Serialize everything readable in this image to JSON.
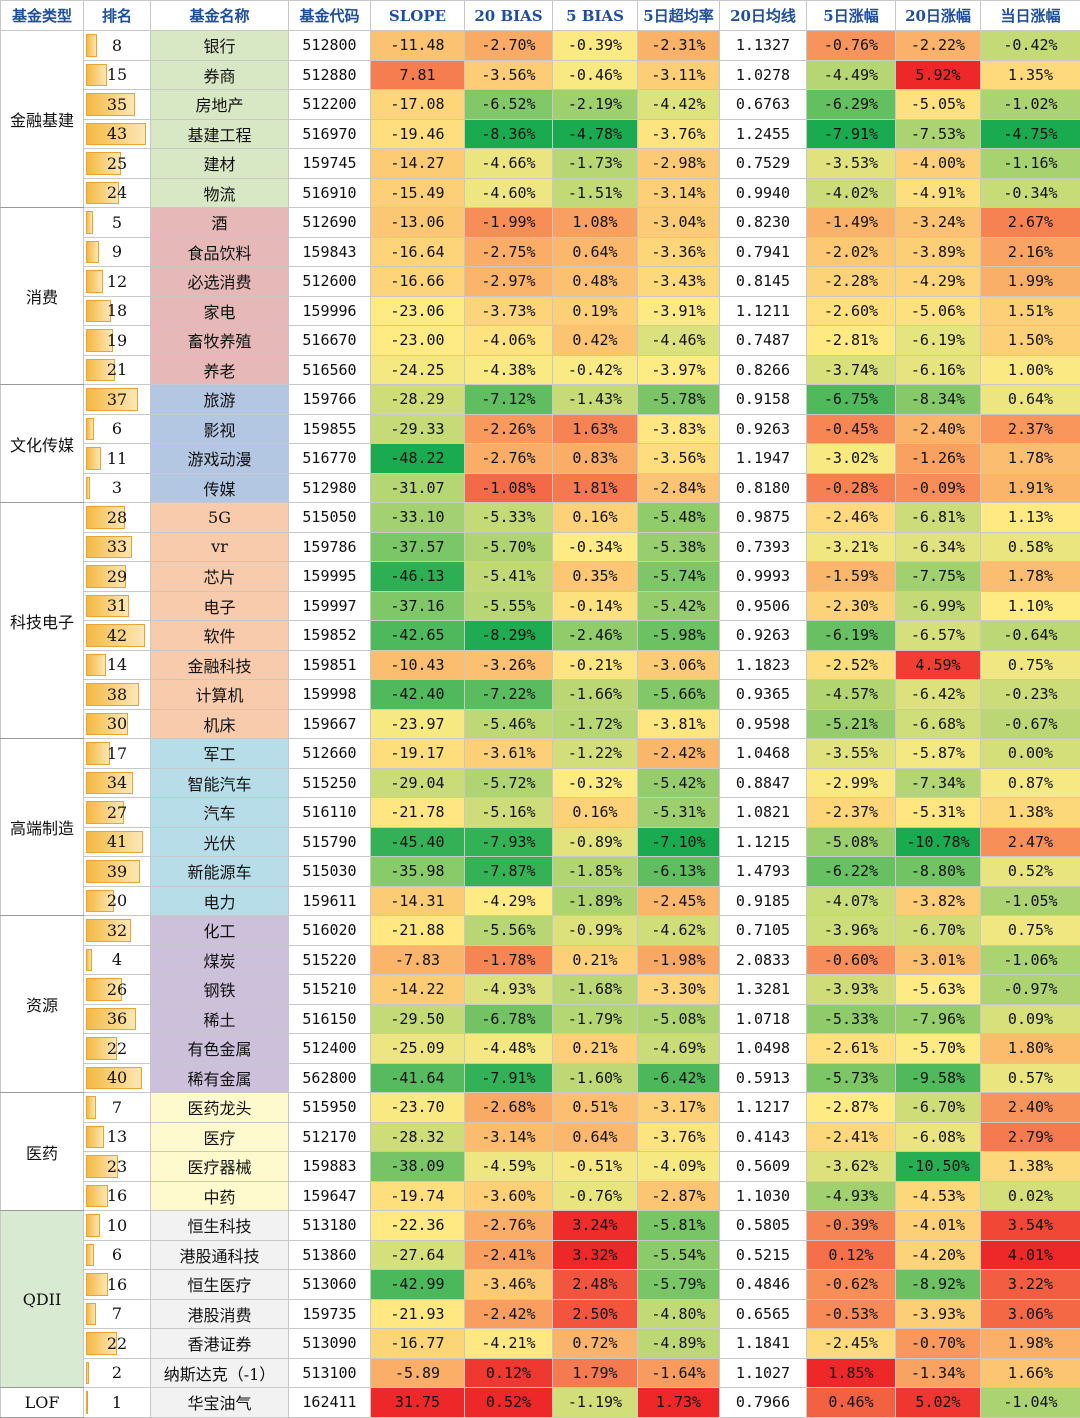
{
  "headers": [
    "基金类型",
    "排名",
    "基金名称",
    "基金代码",
    "SLOPE",
    "20 BIAS",
    "5 BIAS",
    "5日超均率",
    "20日均线",
    "5日涨幅",
    "20日涨幅",
    "当日涨幅"
  ],
  "colors": {
    "header_text": "#1f4e9a",
    "rank_bar": "#f4b942",
    "grid": "#c8c8c8"
  },
  "groups": [
    {
      "category": "金融基建",
      "name_color": "#d9e8c4",
      "rows": [
        [
          "8",
          "银行",
          "512800",
          "-11.48",
          "-2.70%",
          "-0.39%",
          "-2.31%",
          "1.1327",
          "-0.76%",
          "-2.22%",
          "-0.42%"
        ],
        [
          "15",
          "券商",
          "512880",
          "7.81",
          "-3.56%",
          "-0.46%",
          "-3.11%",
          "1.0278",
          "-4.49%",
          "5.92%",
          "1.35%"
        ],
        [
          "35",
          "房地产",
          "512200",
          "-17.08",
          "-6.52%",
          "-2.19%",
          "-4.42%",
          "0.6763",
          "-6.29%",
          "-5.05%",
          "-1.02%"
        ],
        [
          "43",
          "基建工程",
          "516970",
          "-19.46",
          "-8.36%",
          "-4.78%",
          "-3.76%",
          "1.2455",
          "-7.91%",
          "-7.53%",
          "-4.75%"
        ],
        [
          "25",
          "建材",
          "159745",
          "-14.27",
          "-4.66%",
          "-1.73%",
          "-2.98%",
          "0.7529",
          "-3.53%",
          "-4.00%",
          "-1.16%"
        ],
        [
          "24",
          "物流",
          "516910",
          "-15.49",
          "-4.60%",
          "-1.51%",
          "-3.14%",
          "0.9940",
          "-4.02%",
          "-4.91%",
          "-0.34%"
        ]
      ]
    },
    {
      "category": "消费",
      "name_color": "#e6b8b7",
      "rows": [
        [
          "5",
          "酒",
          "512690",
          "-13.06",
          "-1.99%",
          "1.08%",
          "-3.04%",
          "0.8230",
          "-1.49%",
          "-3.24%",
          "2.67%"
        ],
        [
          "9",
          "食品饮料",
          "159843",
          "-16.64",
          "-2.75%",
          "0.64%",
          "-3.36%",
          "0.7941",
          "-2.02%",
          "-3.89%",
          "2.16%"
        ],
        [
          "12",
          "必选消费",
          "512600",
          "-16.66",
          "-2.97%",
          "0.48%",
          "-3.43%",
          "0.8145",
          "-2.28%",
          "-4.29%",
          "1.99%"
        ],
        [
          "18",
          "家电",
          "159996",
          "-23.06",
          "-3.73%",
          "0.19%",
          "-3.91%",
          "1.1211",
          "-2.60%",
          "-5.06%",
          "1.51%"
        ],
        [
          "19",
          "畜牧养殖",
          "516670",
          "-23.00",
          "-4.06%",
          "0.42%",
          "-4.46%",
          "0.7487",
          "-2.81%",
          "-6.19%",
          "1.50%"
        ],
        [
          "21",
          "养老",
          "516560",
          "-24.25",
          "-4.38%",
          "-0.42%",
          "-3.97%",
          "0.8266",
          "-3.74%",
          "-6.16%",
          "1.00%"
        ]
      ]
    },
    {
      "category": "文化传媒",
      "name_color": "#b4c7e2",
      "rows": [
        [
          "37",
          "旅游",
          "159766",
          "-28.29",
          "-7.12%",
          "-1.43%",
          "-5.78%",
          "0.9158",
          "-6.75%",
          "-8.34%",
          "0.64%"
        ],
        [
          "6",
          "影视",
          "159855",
          "-29.33",
          "-2.26%",
          "1.63%",
          "-3.83%",
          "0.9263",
          "-0.45%",
          "-2.40%",
          "2.37%"
        ],
        [
          "11",
          "游戏动漫",
          "516770",
          "-48.22",
          "-2.76%",
          "0.83%",
          "-3.56%",
          "1.1947",
          "-3.02%",
          "-1.26%",
          "1.78%"
        ],
        [
          "3",
          "传媒",
          "512980",
          "-31.07",
          "-1.08%",
          "1.81%",
          "-2.84%",
          "0.8180",
          "-0.28%",
          "-0.09%",
          "1.91%"
        ]
      ]
    },
    {
      "category": "科技电子",
      "name_color": "#f8cbad",
      "rows": [
        [
          "28",
          "5G",
          "515050",
          "-33.10",
          "-5.33%",
          "0.16%",
          "-5.48%",
          "0.9875",
          "-2.46%",
          "-6.81%",
          "1.13%"
        ],
        [
          "33",
          "vr",
          "159786",
          "-37.57",
          "-5.70%",
          "-0.34%",
          "-5.38%",
          "0.7393",
          "-3.21%",
          "-6.34%",
          "0.58%"
        ],
        [
          "29",
          "芯片",
          "159995",
          "-46.13",
          "-5.41%",
          "0.35%",
          "-5.74%",
          "0.9993",
          "-1.59%",
          "-7.75%",
          "1.78%"
        ],
        [
          "31",
          "电子",
          "159997",
          "-37.16",
          "-5.55%",
          "-0.14%",
          "-5.42%",
          "0.9506",
          "-2.30%",
          "-6.99%",
          "1.10%"
        ],
        [
          "42",
          "软件",
          "159852",
          "-42.65",
          "-8.29%",
          "-2.46%",
          "-5.98%",
          "0.9263",
          "-6.19%",
          "-6.57%",
          "-0.64%"
        ],
        [
          "14",
          "金融科技",
          "159851",
          "-10.43",
          "-3.26%",
          "-0.21%",
          "-3.06%",
          "1.1823",
          "-2.52%",
          "4.59%",
          "0.75%"
        ],
        [
          "38",
          "计算机",
          "159998",
          "-42.40",
          "-7.22%",
          "-1.66%",
          "-5.66%",
          "0.9365",
          "-4.57%",
          "-6.42%",
          "-0.23%"
        ],
        [
          "30",
          "机床",
          "159667",
          "-23.97",
          "-5.46%",
          "-1.72%",
          "-3.81%",
          "0.9598",
          "-5.21%",
          "-6.68%",
          "-0.67%"
        ]
      ]
    },
    {
      "category": "高端制造",
      "name_color": "#b7dde8",
      "rows": [
        [
          "17",
          "军工",
          "512660",
          "-19.17",
          "-3.61%",
          "-1.22%",
          "-2.42%",
          "1.0468",
          "-3.55%",
          "-5.87%",
          "0.00%"
        ],
        [
          "34",
          "智能汽车",
          "515250",
          "-29.04",
          "-5.72%",
          "-0.32%",
          "-5.42%",
          "0.8847",
          "-2.99%",
          "-7.34%",
          "0.87%"
        ],
        [
          "27",
          "汽车",
          "516110",
          "-21.78",
          "-5.16%",
          "0.16%",
          "-5.31%",
          "1.0821",
          "-2.37%",
          "-5.31%",
          "1.38%"
        ],
        [
          "41",
          "光伏",
          "515790",
          "-45.40",
          "-7.93%",
          "-0.89%",
          "-7.10%",
          "1.1215",
          "-5.08%",
          "-10.78%",
          "2.47%"
        ],
        [
          "39",
          "新能源车",
          "515030",
          "-35.98",
          "-7.87%",
          "-1.85%",
          "-6.13%",
          "1.4793",
          "-6.22%",
          "-8.80%",
          "0.52%"
        ],
        [
          "20",
          "电力",
          "159611",
          "-14.31",
          "-4.29%",
          "-1.89%",
          "-2.45%",
          "0.9185",
          "-4.07%",
          "-3.82%",
          "-1.05%"
        ]
      ]
    },
    {
      "category": "资源",
      "name_color": "#ccc0da",
      "rows": [
        [
          "32",
          "化工",
          "516020",
          "-21.88",
          "-5.56%",
          "-0.99%",
          "-4.62%",
          "0.7105",
          "-3.96%",
          "-6.70%",
          "0.75%"
        ],
        [
          "4",
          "煤炭",
          "515220",
          "-7.83",
          "-1.78%",
          "0.21%",
          "-1.98%",
          "2.0833",
          "-0.60%",
          "-3.01%",
          "-1.06%"
        ],
        [
          "26",
          "钢铁",
          "515210",
          "-14.22",
          "-4.93%",
          "-1.68%",
          "-3.30%",
          "1.3281",
          "-3.93%",
          "-5.63%",
          "-0.97%"
        ],
        [
          "36",
          "稀土",
          "516150",
          "-29.50",
          "-6.78%",
          "-1.79%",
          "-5.08%",
          "1.0718",
          "-5.33%",
          "-7.96%",
          "0.09%"
        ],
        [
          "22",
          "有色金属",
          "512400",
          "-25.09",
          "-4.48%",
          "0.21%",
          "-4.69%",
          "1.0498",
          "-2.61%",
          "-5.70%",
          "1.80%"
        ],
        [
          "40",
          "稀有金属",
          "562800",
          "-41.64",
          "-7.91%",
          "-1.60%",
          "-6.42%",
          "0.5913",
          "-5.73%",
          "-9.58%",
          "0.57%"
        ]
      ]
    },
    {
      "category": "医药",
      "name_color": "#fffacd",
      "rows": [
        [
          "7",
          "医药龙头",
          "515950",
          "-23.70",
          "-2.68%",
          "0.51%",
          "-3.17%",
          "1.1217",
          "-2.87%",
          "-6.70%",
          "2.40%"
        ],
        [
          "13",
          "医疗",
          "512170",
          "-28.32",
          "-3.14%",
          "0.64%",
          "-3.76%",
          "0.4143",
          "-2.41%",
          "-6.08%",
          "2.79%"
        ],
        [
          "23",
          "医疗器械",
          "159883",
          "-38.09",
          "-4.59%",
          "-0.51%",
          "-4.09%",
          "0.5609",
          "-3.62%",
          "-10.50%",
          "1.38%"
        ],
        [
          "16",
          "中药",
          "159647",
          "-19.74",
          "-3.60%",
          "-0.76%",
          "-2.87%",
          "1.1030",
          "-4.93%",
          "-4.53%",
          "0.02%"
        ]
      ]
    },
    {
      "category": "QDII",
      "name_color": "#f2f2f2",
      "cat_color": "#d9ead3",
      "rows": [
        [
          "10",
          "恒生科技",
          "513180",
          "-22.36",
          "-2.76%",
          "3.24%",
          "-5.81%",
          "0.5805",
          "-0.39%",
          "-4.01%",
          "3.54%"
        ],
        [
          "6",
          "港股通科技",
          "513860",
          "-27.64",
          "-2.41%",
          "3.32%",
          "-5.54%",
          "0.5215",
          "0.12%",
          "-4.20%",
          "4.01%"
        ],
        [
          "16",
          "恒生医疗",
          "513060",
          "-42.99",
          "-3.46%",
          "2.48%",
          "-5.79%",
          "0.4846",
          "-0.62%",
          "-8.92%",
          "3.22%"
        ],
        [
          "7",
          "港股消费",
          "159735",
          "-21.93",
          "-2.42%",
          "2.50%",
          "-4.80%",
          "0.6565",
          "-0.53%",
          "-3.93%",
          "3.06%"
        ],
        [
          "22",
          "香港证券",
          "513090",
          "-16.77",
          "-4.21%",
          "0.72%",
          "-4.89%",
          "1.1841",
          "-2.45%",
          "-0.70%",
          "1.98%"
        ],
        [
          "2",
          "纳斯达克（-1）",
          "513100",
          "-5.89",
          "0.12%",
          "1.79%",
          "-1.64%",
          "1.1027",
          "1.85%",
          "-1.34%",
          "1.66%"
        ]
      ]
    },
    {
      "category": "LOF",
      "name_color": "#f2f2f2",
      "rows": [
        [
          "1",
          "华宝油气",
          "162411",
          "31.75",
          "0.52%",
          "-1.19%",
          "1.73%",
          "0.7966",
          "0.46%",
          "5.02%",
          "-1.04%"
        ]
      ]
    }
  ]
}
